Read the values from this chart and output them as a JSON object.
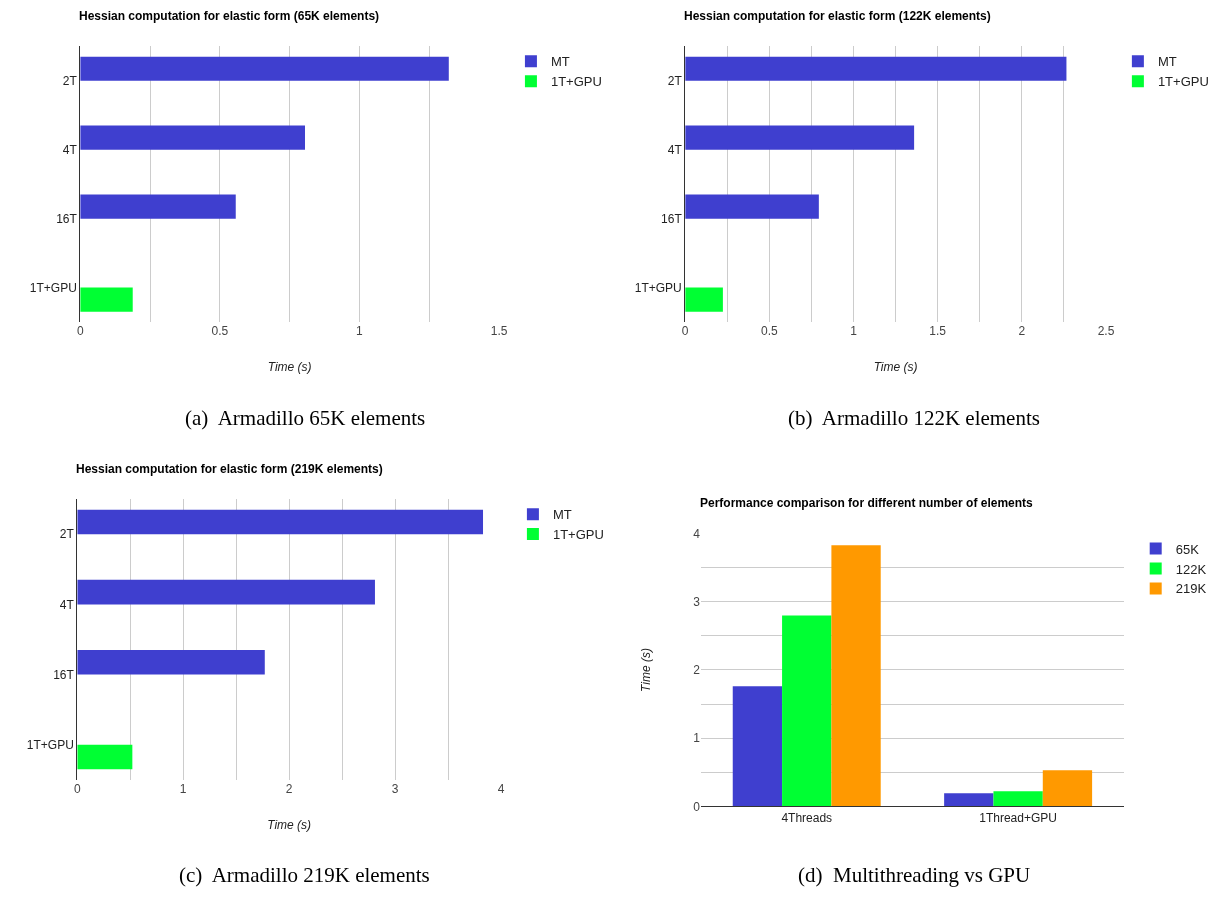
{
  "chart_data": [
    {
      "type": "bar",
      "orientation": "horizontal",
      "title": "Hessian computation for elastic form (65K elements)",
      "xlabel": "Time (s)",
      "categories": [
        "2T",
        "4T",
        "16T",
        "1T+GPU"
      ],
      "series": [
        {
          "name": "MT",
          "color": "#3f3fcf",
          "values": [
            1.32,
            0.805,
            0.557,
            null
          ]
        },
        {
          "name": "1T+GPU",
          "color": "#00ff33",
          "values": [
            null,
            null,
            null,
            0.188
          ]
        }
      ],
      "xlim": [
        0,
        1.5
      ],
      "xticks": [
        0,
        {
          "value": 0.25,
          "label": null
        },
        0.5,
        {
          "value": 0.75,
          "label": null
        },
        1,
        {
          "value": 1.25,
          "label": null
        },
        1.5
      ],
      "grid": "x",
      "legend": "top right",
      "annotations": [
        "(a)  Armadillo 65K elements"
      ]
    },
    {
      "type": "bar",
      "orientation": "horizontal",
      "title": "Hessian computation for elastic form (122K elements)",
      "xlabel": "Time (s)",
      "categories": [
        "2T",
        "4T",
        "16T",
        "1T+GPU"
      ],
      "series": [
        {
          "name": "MT",
          "color": "#3f3fcf",
          "values": [
            2.265,
            1.36,
            0.794,
            null
          ]
        },
        {
          "name": "1T+GPU",
          "color": "#00ff33",
          "values": [
            null,
            null,
            null,
            0.224
          ]
        }
      ],
      "xlim": [
        0,
        2.5
      ],
      "xticks": [
        0,
        {
          "value": 0.25,
          "label": null
        },
        0.5,
        {
          "value": 0.75,
          "label": null
        },
        1,
        {
          "value": 1.25,
          "label": null
        },
        1.5,
        {
          "value": 1.75,
          "label": null
        },
        2,
        {
          "value": 2.25,
          "label": null
        },
        2.5
      ],
      "grid": "x",
      "legend": "top right",
      "annotations": [
        "(b)  Armadillo 122K elements"
      ]
    },
    {
      "type": "bar",
      "orientation": "horizontal",
      "title": "Hessian computation for elastic form (219K elements)",
      "xlabel": "Time (s)",
      "categories": [
        "2T",
        "4T",
        "16T",
        "1T+GPU"
      ],
      "series": [
        {
          "name": "MT",
          "color": "#3f3fcf",
          "values": [
            3.83,
            2.81,
            1.77,
            null
          ]
        },
        {
          "name": "1T+GPU",
          "color": "#00ff33",
          "values": [
            null,
            null,
            null,
            0.52
          ]
        }
      ],
      "xlim": [
        0,
        4
      ],
      "xticks": [
        0,
        {
          "value": 0.5,
          "label": null
        },
        1,
        {
          "value": 1.5,
          "label": null
        },
        2,
        {
          "value": 2.5,
          "label": null
        },
        3,
        {
          "value": 3.5,
          "label": null
        },
        4
      ],
      "grid": "x",
      "legend": "top right",
      "annotations": [
        "(c)  Armadillo 219K elements"
      ]
    },
    {
      "type": "bar",
      "title": "Performance comparison for different number of elements",
      "ylabel": "Time (s)",
      "categories": [
        "4Threads",
        "1Thread+GPU"
      ],
      "series": [
        {
          "name": "65K",
          "color": "#3f3fcf",
          "values": [
            1.76,
            0.19
          ]
        },
        {
          "name": "122K",
          "color": "#00ff33",
          "values": [
            2.8,
            0.22
          ]
        },
        {
          "name": "219K",
          "color": "#ff9900",
          "values": [
            3.83,
            0.53
          ]
        }
      ],
      "ylim": [
        0,
        4
      ],
      "yticks": [
        0,
        {
          "value": 0.5,
          "label": null
        },
        1,
        {
          "value": 1.5,
          "label": null
        },
        2,
        {
          "value": 2.5,
          "label": null
        },
        3,
        {
          "value": 3.5,
          "label": null
        },
        4
      ],
      "grid": "y",
      "legend": "top right",
      "annotations": [
        "(d)  Multithreading vs GPU"
      ]
    }
  ]
}
